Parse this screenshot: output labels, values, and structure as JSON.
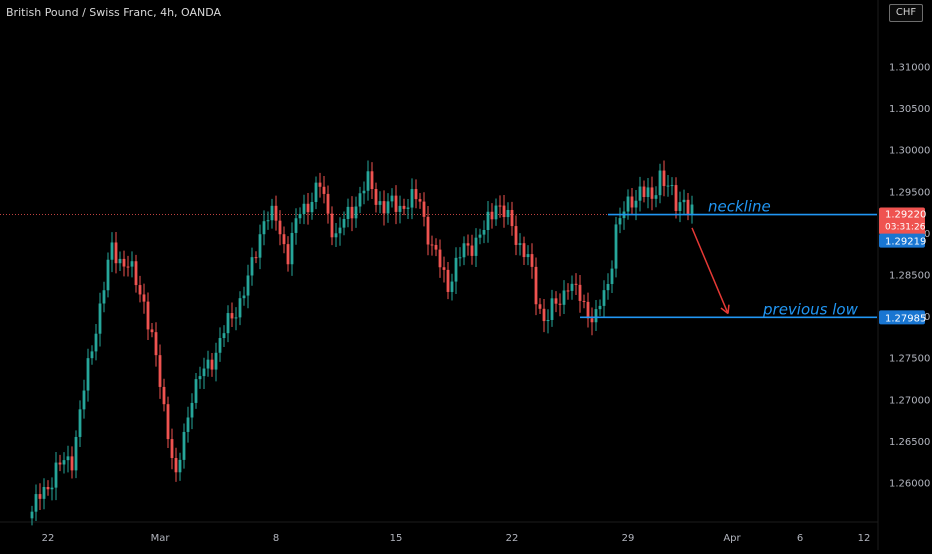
{
  "header": {
    "title": "British Pound / Swiss Franc, 4h, OANDA",
    "currency": "CHF"
  },
  "colors": {
    "background": "#000000",
    "up_candle": "#26a69a",
    "down_candle": "#ef5350",
    "annotation_blue": "#2196f3",
    "arrow_red": "#e53935",
    "last_price_label": "#ef5350",
    "crosshair_price_label": "#1976d2",
    "axis_text": "#b2b5be"
  },
  "chart_data": {
    "type": "candlestick",
    "title": "British Pound / Swiss Franc, 4h, OANDA",
    "ylim": [
      1.2555,
      1.3175
    ],
    "grid": false,
    "y_ticks": [
      "1.26000",
      "1.26500",
      "1.27000",
      "1.27500",
      "1.28000",
      "1.28500",
      "1.29000",
      "1.29500",
      "1.30000",
      "1.30500",
      "1.31000"
    ],
    "y_tick_values": [
      1.26,
      1.265,
      1.27,
      1.275,
      1.28,
      1.285,
      1.29,
      1.295,
      1.3,
      1.305,
      1.31
    ],
    "x_ticks": [
      "22",
      "Mar",
      "8",
      "15",
      "22",
      "29",
      "Apr",
      "6",
      "12"
    ],
    "x_tick_index": [
      4,
      32,
      61,
      91,
      120,
      149,
      175,
      192,
      208
    ],
    "price_labels": {
      "last_price": "1.29220",
      "countdown": "03:31:26",
      "crosshair_price": "1.29219",
      "previous_low_price": "1.27985"
    },
    "price_label_values": {
      "last_price": 1.2922,
      "crosshair_price": 1.29219,
      "previous_low_price": 1.27985
    },
    "annotations": [
      {
        "label": "neckline",
        "price": 1.2922,
        "from_index": 144,
        "to_index": 218
      },
      {
        "label": "previous low",
        "price": 1.27985,
        "from_index": 137,
        "to_index": 218
      }
    ],
    "arrow": {
      "from_index": 165,
      "from_price": 1.2906,
      "to_index": 174,
      "to_price": 1.2803
    },
    "anchors": [
      [
        0,
        1.2565
      ],
      [
        6,
        1.2615
      ],
      [
        10,
        1.263
      ],
      [
        16,
        1.279
      ],
      [
        20,
        1.288
      ],
      [
        24,
        1.286
      ],
      [
        28,
        1.282
      ],
      [
        31,
        1.2745
      ],
      [
        34,
        1.2665
      ],
      [
        36,
        1.26
      ],
      [
        40,
        1.271
      ],
      [
        44,
        1.274
      ],
      [
        49,
        1.279
      ],
      [
        54,
        1.284
      ],
      [
        58,
        1.292
      ],
      [
        61,
        1.2915
      ],
      [
        64,
        1.2875
      ],
      [
        67,
        1.2925
      ],
      [
        72,
        1.2955
      ],
      [
        76,
        1.2895
      ],
      [
        80,
        1.293
      ],
      [
        84,
        1.296
      ],
      [
        88,
        1.293
      ],
      [
        93,
        1.2935
      ],
      [
        97,
        1.294
      ],
      [
        100,
        1.288
      ],
      [
        104,
        1.284
      ],
      [
        108,
        1.288
      ],
      [
        113,
        1.29
      ],
      [
        116,
        1.294
      ],
      [
        120,
        1.2905
      ],
      [
        124,
        1.287
      ],
      [
        126,
        1.282
      ],
      [
        128,
        1.28
      ],
      [
        132,
        1.2815
      ],
      [
        134,
        1.2845
      ],
      [
        138,
        1.281
      ],
      [
        141,
        1.28
      ],
      [
        144,
        1.2835
      ],
      [
        146,
        1.291
      ],
      [
        149,
        1.293
      ],
      [
        152,
        1.2955
      ],
      [
        155,
        1.2935
      ],
      [
        157,
        1.2975
      ],
      [
        159,
        1.2955
      ],
      [
        161,
        1.293
      ],
      [
        163,
        1.2945
      ],
      [
        165,
        1.2922
      ]
    ]
  }
}
